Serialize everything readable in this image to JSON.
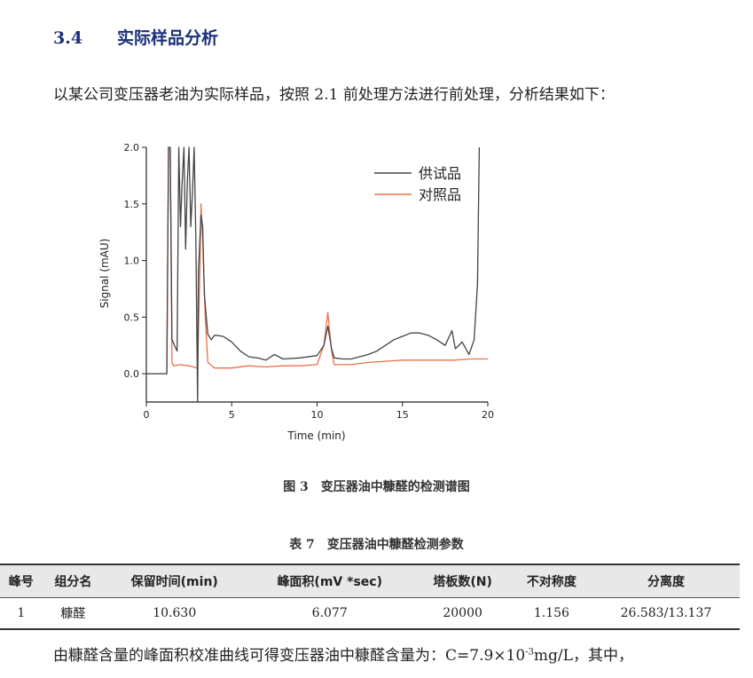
{
  "section": {
    "number": "3.4",
    "title": "实际样品分析"
  },
  "intro": "以某公司变压器老油为实际样品，按照 2.1 前处理方法进行前处理，分析结果如下：",
  "figure_caption": "图 3　变压器油中糠醛的检测谱图",
  "table_caption": "表 7　变压器油中糠醛检测参数",
  "table": {
    "headers": [
      "峰号",
      "组分名",
      "保留时间(min)",
      "峰面积(mV *sec)",
      "塔板数(N)",
      "不对称度",
      "分离度"
    ],
    "rows": [
      [
        "1",
        "糠醛",
        "10.630",
        "6.077",
        "20000",
        "1.156",
        "26.583/13.137"
      ]
    ]
  },
  "footer": {
    "pre": "由糠醛含量的峰面积校准曲线可得变压器油中糠醛含量为：C=7.9×10",
    "exp": "-3",
    "post": "mg/L，其中，"
  },
  "chart_data": {
    "type": "line",
    "xlabel": "Time (min)",
    "ylabel": "Signal (mAU)",
    "xlim": [
      0,
      20
    ],
    "ylim": [
      -0.25,
      2.0
    ],
    "x_ticks": [
      0,
      5,
      10,
      15,
      20
    ],
    "y_ticks": [
      0.0,
      0.5,
      1.0,
      1.5,
      2.0
    ],
    "y_tick_labels": [
      "0.0",
      "0.5",
      "1.0",
      "1.5",
      "2.0"
    ],
    "legend_position": "top-right",
    "series": [
      {
        "name": "供试品",
        "color": "#444444",
        "points": [
          [
            0,
            0.0
          ],
          [
            1.2,
            0.0
          ],
          [
            1.3,
            2.0
          ],
          [
            1.4,
            2.0
          ],
          [
            1.5,
            0.3
          ],
          [
            1.8,
            0.2
          ],
          [
            1.9,
            2.0
          ],
          [
            2.0,
            1.3
          ],
          [
            2.1,
            1.7
          ],
          [
            2.2,
            2.0
          ],
          [
            2.3,
            1.1
          ],
          [
            2.4,
            1.7
          ],
          [
            2.5,
            2.0
          ],
          [
            2.6,
            1.3
          ],
          [
            2.7,
            1.6
          ],
          [
            2.8,
            2.0
          ],
          [
            2.9,
            1.2
          ],
          [
            3.0,
            -0.25
          ],
          [
            3.05,
            0.9
          ],
          [
            3.2,
            1.4
          ],
          [
            3.3,
            1.3
          ],
          [
            3.4,
            0.7
          ],
          [
            3.6,
            0.35
          ],
          [
            3.8,
            0.3
          ],
          [
            4.0,
            0.34
          ],
          [
            4.5,
            0.33
          ],
          [
            5.0,
            0.28
          ],
          [
            5.5,
            0.2
          ],
          [
            6.0,
            0.15
          ],
          [
            6.5,
            0.14
          ],
          [
            7.0,
            0.12
          ],
          [
            7.5,
            0.17
          ],
          [
            8.0,
            0.13
          ],
          [
            9.0,
            0.14
          ],
          [
            10.0,
            0.16
          ],
          [
            10.4,
            0.25
          ],
          [
            10.63,
            0.42
          ],
          [
            10.85,
            0.22
          ],
          [
            11.0,
            0.14
          ],
          [
            11.5,
            0.13
          ],
          [
            12.0,
            0.13
          ],
          [
            12.5,
            0.15
          ],
          [
            13.0,
            0.17
          ],
          [
            13.5,
            0.2
          ],
          [
            14.0,
            0.25
          ],
          [
            14.5,
            0.3
          ],
          [
            15.0,
            0.33
          ],
          [
            15.5,
            0.36
          ],
          [
            16.0,
            0.36
          ],
          [
            16.5,
            0.34
          ],
          [
            17.0,
            0.3
          ],
          [
            17.5,
            0.25
          ],
          [
            17.9,
            0.38
          ],
          [
            18.1,
            0.22
          ],
          [
            18.5,
            0.28
          ],
          [
            18.9,
            0.17
          ],
          [
            19.2,
            0.3
          ],
          [
            19.4,
            0.8
          ],
          [
            19.5,
            2.0
          ]
        ]
      },
      {
        "name": "对照品",
        "color": "#e8704a",
        "points": [
          [
            0,
            0.0
          ],
          [
            1.2,
            0.0
          ],
          [
            1.3,
            2.0
          ],
          [
            1.4,
            2.0
          ],
          [
            1.5,
            0.1
          ],
          [
            1.6,
            0.07
          ],
          [
            2.0,
            0.08
          ],
          [
            2.5,
            0.07
          ],
          [
            3.0,
            0.05
          ],
          [
            3.15,
            1.0
          ],
          [
            3.2,
            1.5
          ],
          [
            3.3,
            1.2
          ],
          [
            3.45,
            0.5
          ],
          [
            3.6,
            0.1
          ],
          [
            4.0,
            0.05
          ],
          [
            5.0,
            0.05
          ],
          [
            6.0,
            0.07
          ],
          [
            7.0,
            0.06
          ],
          [
            8.0,
            0.07
          ],
          [
            9.0,
            0.07
          ],
          [
            10.0,
            0.08
          ],
          [
            10.4,
            0.25
          ],
          [
            10.63,
            0.54
          ],
          [
            10.85,
            0.2
          ],
          [
            11.0,
            0.08
          ],
          [
            12.0,
            0.08
          ],
          [
            13.0,
            0.1
          ],
          [
            14.0,
            0.11
          ],
          [
            15.0,
            0.12
          ],
          [
            16.0,
            0.12
          ],
          [
            17.0,
            0.12
          ],
          [
            18.0,
            0.12
          ],
          [
            19.0,
            0.13
          ],
          [
            20.0,
            0.13
          ]
        ]
      }
    ]
  }
}
